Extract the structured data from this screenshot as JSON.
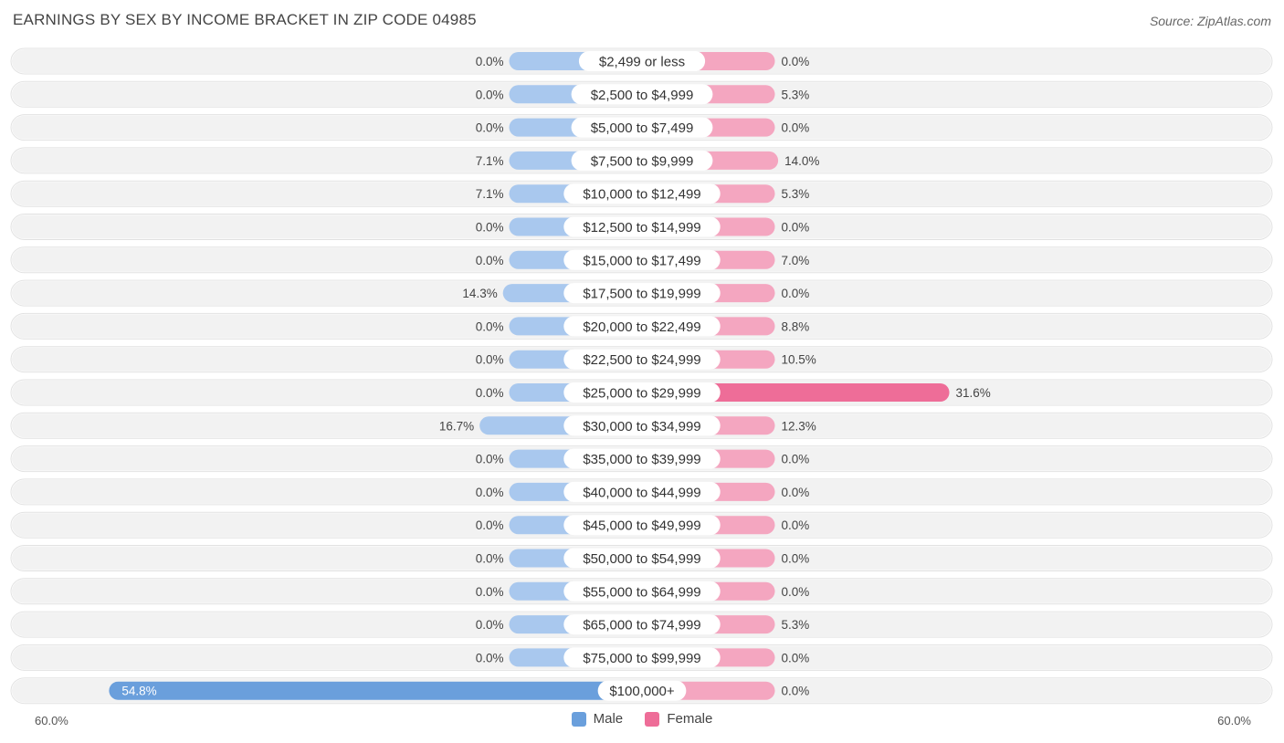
{
  "title": "EARNINGS BY SEX BY INCOME BRACKET IN ZIP CODE 04985",
  "source": "Source: ZipAtlas.com",
  "axis": {
    "left_label": "60.0%",
    "right_label": "60.0%"
  },
  "legend": {
    "male": "Male",
    "female": "Female"
  },
  "colors": {
    "male": "#a9c8ee",
    "male_strong": "#6a9fdc",
    "female": "#f4a6c0",
    "female_strong": "#ee6d98",
    "row_bg": "#f2f2f2"
  },
  "chart_data": {
    "type": "bar",
    "orientation": "horizontal-diverging",
    "title": "EARNINGS BY SEX BY INCOME BRACKET IN ZIP CODE 04985",
    "xlim": [
      -60,
      60
    ],
    "categories": [
      "$2,499 or less",
      "$2,500 to $4,999",
      "$5,000 to $7,499",
      "$7,500 to $9,999",
      "$10,000 to $12,499",
      "$12,500 to $14,999",
      "$15,000 to $17,499",
      "$17,500 to $19,999",
      "$20,000 to $22,499",
      "$22,500 to $24,999",
      "$25,000 to $29,999",
      "$30,000 to $34,999",
      "$35,000 to $39,999",
      "$40,000 to $44,999",
      "$45,000 to $49,999",
      "$50,000 to $54,999",
      "$55,000 to $64,999",
      "$65,000 to $74,999",
      "$75,000 to $99,999",
      "$100,000+"
    ],
    "series": [
      {
        "name": "Male",
        "values": [
          0.0,
          0.0,
          0.0,
          7.1,
          7.1,
          0.0,
          0.0,
          14.3,
          0.0,
          0.0,
          0.0,
          16.7,
          0.0,
          0.0,
          0.0,
          0.0,
          0.0,
          0.0,
          0.0,
          54.8
        ],
        "labels": [
          "0.0%",
          "0.0%",
          "0.0%",
          "7.1%",
          "7.1%",
          "0.0%",
          "0.0%",
          "14.3%",
          "0.0%",
          "0.0%",
          "0.0%",
          "16.7%",
          "0.0%",
          "0.0%",
          "0.0%",
          "0.0%",
          "0.0%",
          "0.0%",
          "0.0%",
          "54.8%"
        ]
      },
      {
        "name": "Female",
        "values": [
          0.0,
          5.3,
          0.0,
          14.0,
          5.3,
          0.0,
          7.0,
          0.0,
          8.8,
          10.5,
          31.6,
          12.3,
          0.0,
          0.0,
          0.0,
          0.0,
          0.0,
          5.3,
          0.0,
          0.0
        ],
        "labels": [
          "0.0%",
          "5.3%",
          "0.0%",
          "14.0%",
          "5.3%",
          "0.0%",
          "7.0%",
          "0.0%",
          "8.8%",
          "10.5%",
          "31.6%",
          "12.3%",
          "0.0%",
          "0.0%",
          "0.0%",
          "0.0%",
          "0.0%",
          "5.3%",
          "0.0%",
          "0.0%"
        ]
      }
    ]
  }
}
